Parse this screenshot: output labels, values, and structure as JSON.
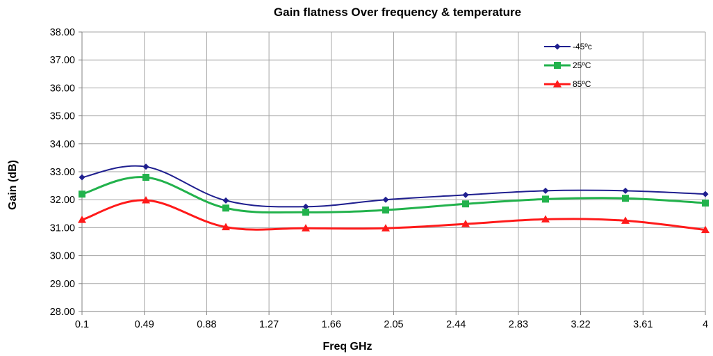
{
  "chart_data": {
    "type": "line",
    "title": "Gain flatness Over frequency & temperature",
    "xlabel": "Freq GHz",
    "ylabel": "Gain (dB)",
    "x_ticks": [
      "0.1",
      "0.49",
      "0.88",
      "1.27",
      "1.66",
      "2.05",
      "2.44",
      "2.83",
      "3.22",
      "3.61",
      "4"
    ],
    "xlim": [
      0.1,
      4
    ],
    "ylim": [
      28,
      38
    ],
    "y_ticks": [
      "28.00",
      "29.00",
      "30.00",
      "31.00",
      "32.00",
      "33.00",
      "34.00",
      "35.00",
      "36.00",
      "37.00",
      "38.00"
    ],
    "grid": true,
    "legend_position": "top-right",
    "x": [
      0.1,
      0.5,
      1.0,
      1.5,
      2.0,
      2.5,
      3.0,
      3.5,
      4.0
    ],
    "series": [
      {
        "name": "-45ºc",
        "color": "#1f1f8f",
        "marker": "diamond",
        "values": [
          32.8,
          33.18,
          31.97,
          31.75,
          32.0,
          32.17,
          32.32,
          32.32,
          32.2
        ]
      },
      {
        "name": "25ºC",
        "color": "#22b24c",
        "marker": "square",
        "values": [
          32.2,
          32.8,
          31.7,
          31.55,
          31.63,
          31.85,
          32.02,
          32.05,
          31.88
        ]
      },
      {
        "name": "85ºC",
        "color": "#ff1a1a",
        "marker": "triangle",
        "values": [
          31.28,
          31.98,
          31.02,
          30.98,
          30.98,
          31.13,
          31.3,
          31.25,
          30.92
        ]
      }
    ]
  }
}
